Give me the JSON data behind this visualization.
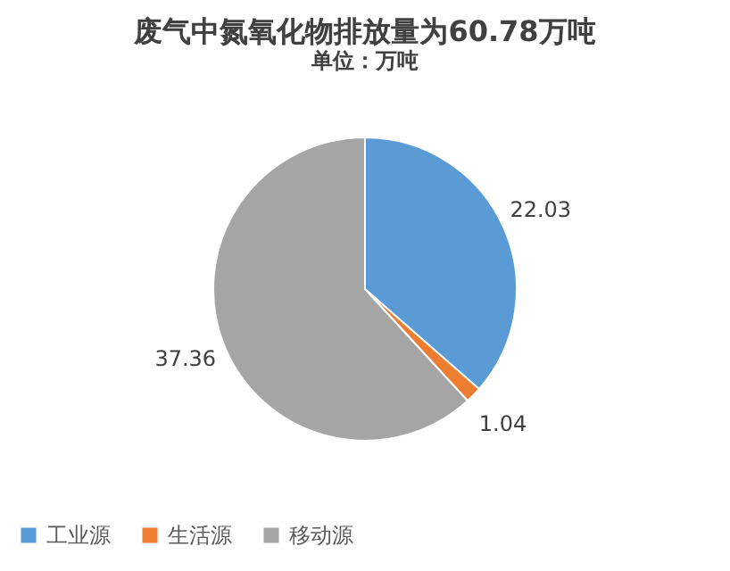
{
  "chart_data": {
    "type": "pie",
    "title": "废气中氮氧化物排放量为60.78万吨",
    "subtitle": "单位：万吨",
    "categories": [
      "工业源",
      "生活源",
      "移动源"
    ],
    "values": [
      22.03,
      1.04,
      37.36
    ],
    "colors": [
      "#5b9bd5",
      "#ed7d31",
      "#a5a5a5"
    ],
    "data_labels": true,
    "legend": "bottom"
  }
}
